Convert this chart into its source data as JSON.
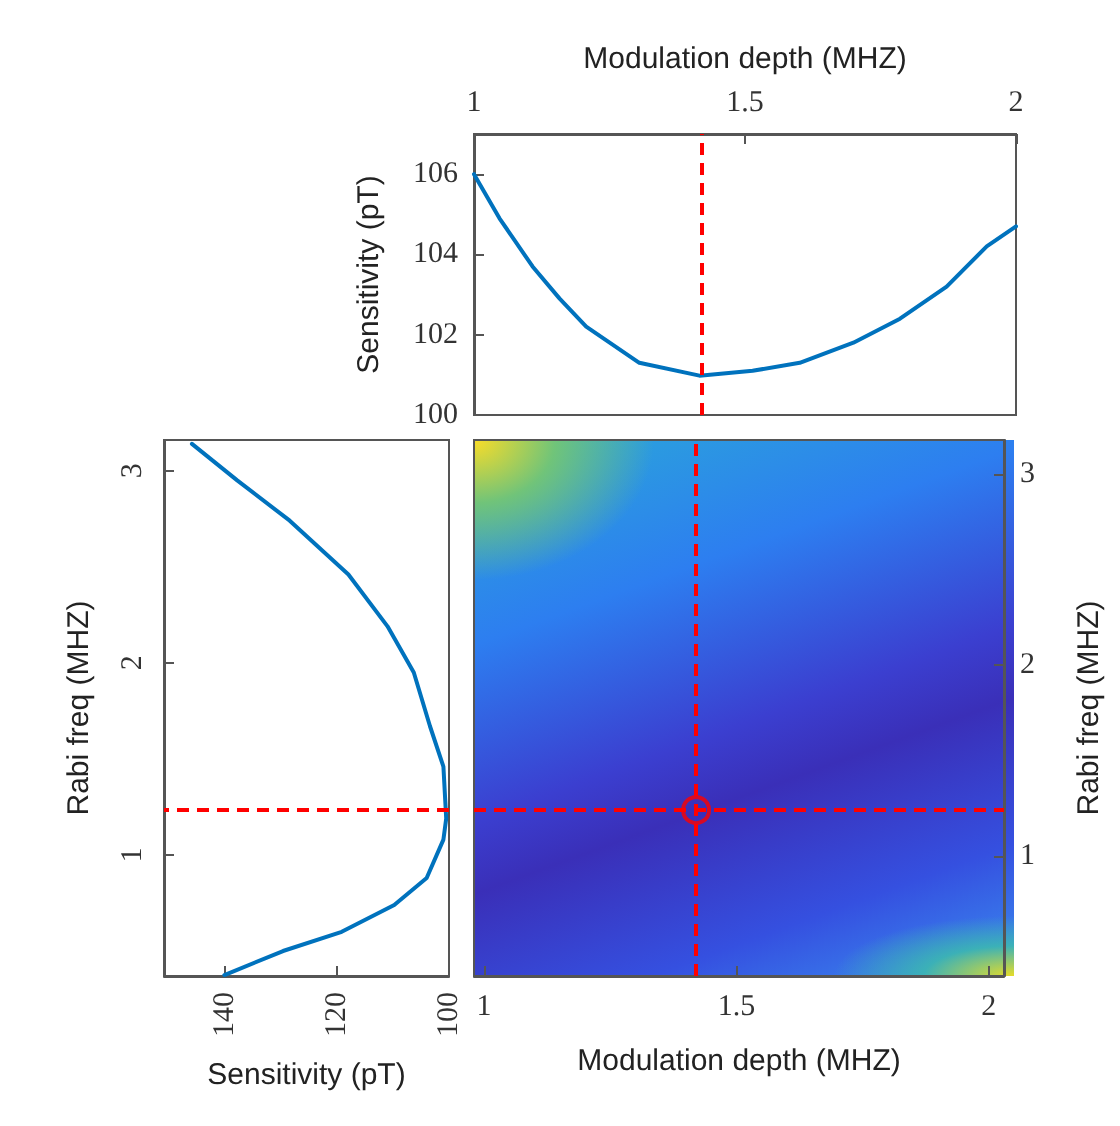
{
  "chart_data": [
    {
      "type": "line",
      "xlabel": "Modulation depth (MHZ)",
      "ylabel": "Sensitivity (pT)",
      "xlim": [
        1,
        2
      ],
      "xticks": [
        1,
        1.5,
        2
      ],
      "ylim": [
        100,
        107
      ],
      "yticks": [
        100,
        102,
        104,
        106
      ],
      "grid": false,
      "marker": "none",
      "line_style": "solid",
      "series": [
        {
          "color": "#0072bd",
          "x": [
            1.0,
            1.047,
            1.108,
            1.158,
            1.207,
            1.305,
            1.416,
            1.514,
            1.601,
            1.7,
            1.786,
            1.872,
            1.946,
            2.0
          ],
          "values": [
            106,
            104.9,
            103.7,
            102.9,
            102.2,
            101.3,
            100.98,
            101.1,
            101.3,
            101.8,
            102.4,
            103.2,
            104.2,
            104.7
          ]
        }
      ],
      "ref_lines": [
        {
          "axis": "x",
          "value": 1.42,
          "color": "#ff0000",
          "line_style": "dashed"
        }
      ]
    },
    {
      "type": "line",
      "xlabel": "Sensitivity (pT)",
      "ylabel": "Rabi freq (MHZ)",
      "xlim": [
        151,
        100
      ],
      "xticks": [
        140,
        120,
        100
      ],
      "ylim": [
        0.37,
        3.16
      ],
      "yticks": [
        1,
        2,
        3
      ],
      "grid": false,
      "marker": "none",
      "line_style": "solid",
      "series": [
        {
          "color": "#0072bd",
          "x": [
            140.2,
            129.7,
            119.2,
            109.8,
            104,
            101,
            100.5,
            101,
            103.4,
            106.3,
            111,
            118,
            128.5,
            137.9,
            146
          ],
          "values": [
            0.375,
            0.5,
            0.6,
            0.74,
            0.88,
            1.08,
            1.19,
            1.46,
            1.67,
            1.95,
            2.19,
            2.46,
            2.74,
            2.95,
            3.14
          ]
        }
      ],
      "ref_lines": [
        {
          "axis": "y",
          "value": 1.24,
          "color": "#ff0000",
          "line_style": "dashed"
        }
      ]
    },
    {
      "type": "scatter",
      "xlabel": "Modulation depth (MHZ)",
      "ylabel": "Rabi freq (MHZ)",
      "xlim": [
        0.98,
        2.03
      ],
      "xticks": [
        1,
        1.5,
        2
      ],
      "ylim": [
        0.37,
        3.18
      ],
      "yticks": [
        1,
        2,
        3
      ],
      "grid": false,
      "marker": "circle",
      "series": [
        {
          "color": "#ff0000",
          "x": [
            1.42
          ],
          "values": [
            1.24
          ]
        }
      ],
      "ref_lines": [
        {
          "axis": "x",
          "value": 1.42,
          "color": "#ff0000",
          "line_style": "dashed"
        },
        {
          "axis": "y",
          "value": 1.24,
          "color": "#ff0000",
          "line_style": "dashed"
        }
      ]
    }
  ]
}
